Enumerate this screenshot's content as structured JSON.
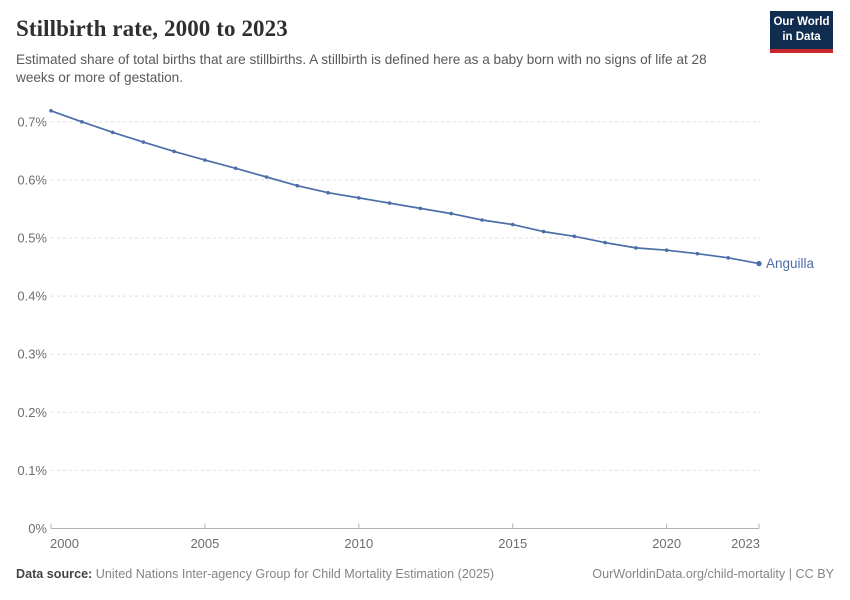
{
  "header": {
    "title": "Stillbirth rate, 2000 to 2023",
    "subtitle": "Estimated share of total births that are stillbirths. A stillbirth is defined here as a baby born with no signs of life at 28 weeks or more of gestation."
  },
  "logo": {
    "line1": "Our World",
    "line2": "in Data"
  },
  "colors": {
    "line": "#4c6ea8",
    "grid": "#dedede",
    "axis": "#b3b3b3",
    "tick_text": "#6e6e6e",
    "logo_bg": "#102d50",
    "logo_red": "#c8282d"
  },
  "chart_data": {
    "type": "line",
    "title": "Stillbirth rate, 2000 to 2023",
    "xlabel": "",
    "ylabel": "",
    "unit": "%",
    "grid": "horizontal-dashed",
    "legend_position": "end-of-line-label",
    "xlim": [
      2000,
      2023
    ],
    "ylim": [
      0,
      0.737
    ],
    "x": [
      2000,
      2001,
      2002,
      2003,
      2004,
      2005,
      2006,
      2007,
      2008,
      2009,
      2010,
      2011,
      2012,
      2013,
      2014,
      2015,
      2016,
      2017,
      2018,
      2019,
      2020,
      2021,
      2022,
      2023
    ],
    "series": [
      {
        "name": "Anguilla",
        "values": [
          0.719,
          0.7,
          0.682,
          0.665,
          0.649,
          0.634,
          0.62,
          0.605,
          0.59,
          0.578,
          0.569,
          0.56,
          0.551,
          0.542,
          0.531,
          0.523,
          0.511,
          0.503,
          0.492,
          0.483,
          0.479,
          0.473,
          0.466,
          0.456
        ]
      }
    ],
    "yticks": [
      {
        "value": 0,
        "label": "0%"
      },
      {
        "value": 0.1,
        "label": "0.1%"
      },
      {
        "value": 0.2,
        "label": "0.2%"
      },
      {
        "value": 0.3,
        "label": "0.3%"
      },
      {
        "value": 0.4,
        "label": "0.4%"
      },
      {
        "value": 0.5,
        "label": "0.5%"
      },
      {
        "value": 0.6,
        "label": "0.6%"
      },
      {
        "value": 0.7,
        "label": "0.7%"
      }
    ],
    "xticks": [
      {
        "value": 2000,
        "label": "2000"
      },
      {
        "value": 2005,
        "label": "2005"
      },
      {
        "value": 2010,
        "label": "2010"
      },
      {
        "value": 2015,
        "label": "2015"
      },
      {
        "value": 2020,
        "label": "2020"
      },
      {
        "value": 2023,
        "label": "2023"
      }
    ]
  },
  "footer": {
    "source_label": "Data source:",
    "source_text": "United Nations Inter-agency Group for Child Mortality Estimation (2025)",
    "link_text": "OurWorldinData.org/child-mortality | CC BY"
  }
}
